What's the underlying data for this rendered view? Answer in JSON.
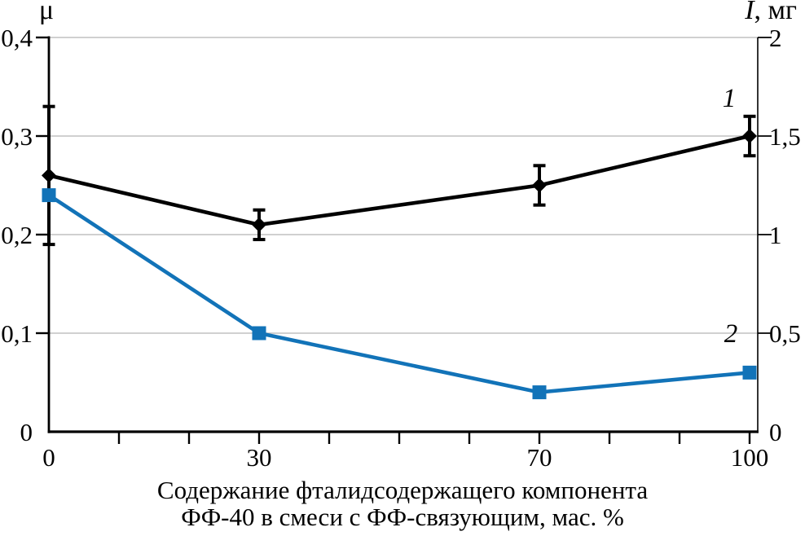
{
  "chart_data": {
    "type": "line",
    "background_color": "#ffffff",
    "caption_lines": [
      "Содержание фталидсодержащего компонента",
      "ФФ-40 в смеси с ФФ-связующим, мас. %"
    ],
    "x_axis": {
      "lim": [
        0,
        100
      ],
      "minor_tick_step": 10,
      "labeled_ticks": [
        0,
        30,
        70,
        100
      ],
      "tick_labels": [
        "0",
        "30",
        "70",
        "100"
      ]
    },
    "left_axis": {
      "label": "μ",
      "lim": [
        0,
        0.4
      ],
      "ticks": [
        0,
        0.1,
        0.2,
        0.3,
        0.4
      ],
      "tick_labels": [
        "0",
        "0,1",
        "0,2",
        "0,3",
        "0,4"
      ]
    },
    "right_axis": {
      "label_italic": "I",
      "label_rest": ", мг",
      "lim": [
        0,
        2
      ],
      "ticks": [
        0,
        0.5,
        1,
        1.5,
        2
      ],
      "tick_labels": [
        "0",
        "0,5",
        "1",
        "1,5",
        "2"
      ]
    },
    "grid": {
      "color": "#c0c0c0",
      "at_left_values": [
        0.1,
        0.2,
        0.3,
        0.4
      ]
    },
    "series": [
      {
        "name": "1",
        "axis": "left",
        "color": "#000000",
        "marker": "diamond",
        "x": [
          0,
          30,
          70,
          100
        ],
        "values": [
          0.26,
          0.21,
          0.25,
          0.3
        ],
        "errors": [
          0.07,
          0.015,
          0.02,
          0.02
        ]
      },
      {
        "name": "2",
        "axis": "right",
        "color": "#1273b8",
        "marker": "square",
        "x": [
          0,
          30,
          70,
          100
        ],
        "values": [
          1.2,
          0.5,
          0.2,
          0.3
        ],
        "errors": []
      }
    ]
  }
}
